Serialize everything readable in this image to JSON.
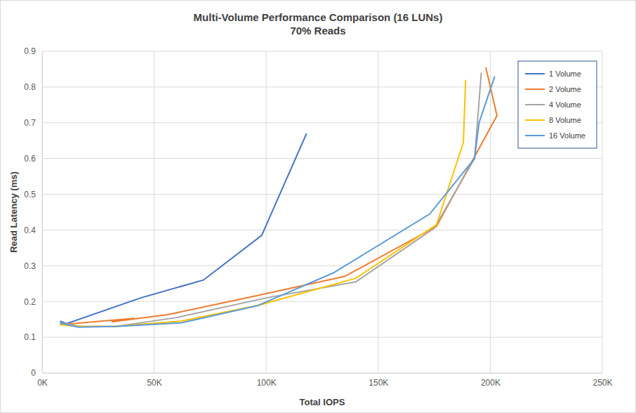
{
  "chart_data": {
    "type": "line",
    "title": "Multi-Volume Performance Comparison (16 LUNs)",
    "subtitle": "70% Reads",
    "x_label": "Total IOPS",
    "y_label": "Read Latency (ms)",
    "xlim": [
      0,
      250000
    ],
    "xticks": [
      {
        "value": 0,
        "label": "0K"
      },
      {
        "value": 50000,
        "label": "50K"
      },
      {
        "value": 100000,
        "label": "100K"
      },
      {
        "value": 150000,
        "label": "150K"
      },
      {
        "value": 200000,
        "label": "200K"
      },
      {
        "value": 250000,
        "label": "250K"
      }
    ],
    "ylim": [
      0,
      0.9
    ],
    "yticks": [
      0,
      0.1,
      0.2,
      0.3,
      0.4,
      0.5,
      0.6,
      0.7,
      0.8,
      0.9
    ],
    "grid": true,
    "legend": "top-right",
    "series": [
      {
        "name": "1 Volume",
        "color": "#4472c4",
        "x": [
          8000,
          11000,
          44000,
          72000,
          98000,
          118000
        ],
        "values": [
          0.145,
          0.138,
          0.21,
          0.26,
          0.385,
          0.67
        ]
      },
      {
        "name": "2 Volume",
        "color": "#ed7d31",
        "x": [
          8000,
          41000,
          31000,
          56000,
          95000,
          135000,
          176000,
          203000,
          198000
        ],
        "values": [
          0.135,
          0.153,
          0.143,
          0.163,
          0.215,
          0.27,
          0.41,
          0.72,
          0.855
        ]
      },
      {
        "name": "4 Volume",
        "color": "#a5a5a5",
        "x": [
          9000,
          17000,
          33000,
          60000,
          100000,
          140000,
          175000,
          193000,
          196000
        ],
        "values": [
          0.14,
          0.13,
          0.13,
          0.155,
          0.21,
          0.255,
          0.405,
          0.6,
          0.84
        ]
      },
      {
        "name": "8 Volume",
        "color": "#ffc000",
        "x": [
          8000,
          17000,
          33000,
          62000,
          97000,
          140000,
          176000,
          188000,
          189000
        ],
        "values": [
          0.135,
          0.13,
          0.13,
          0.145,
          0.19,
          0.265,
          0.415,
          0.645,
          0.82
        ]
      },
      {
        "name": "16 Volume",
        "color": "#5b9bd5",
        "x": [
          8000,
          16000,
          33000,
          62000,
          96000,
          130000,
          173000,
          193000,
          195000,
          202000
        ],
        "values": [
          0.14,
          0.128,
          0.13,
          0.14,
          0.188,
          0.28,
          0.445,
          0.6,
          0.7,
          0.83
        ]
      }
    ]
  }
}
